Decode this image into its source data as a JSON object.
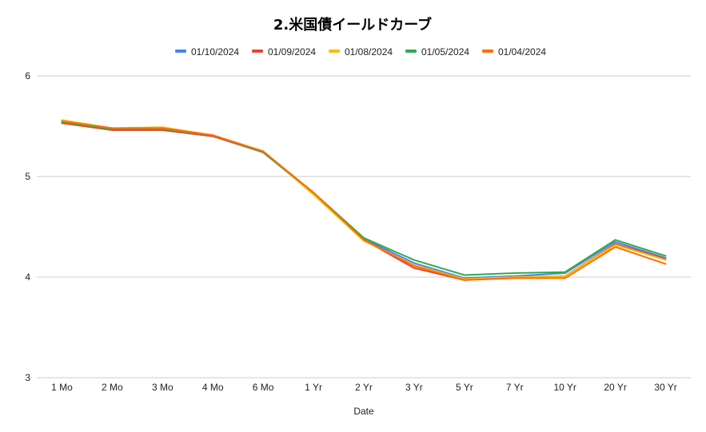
{
  "chart_data": {
    "type": "line",
    "title": "2.米国債イールドカーブ",
    "xlabel": "Date",
    "ylabel": "",
    "ylim": [
      3,
      6
    ],
    "yticks": [
      "3",
      "4",
      "5",
      "6"
    ],
    "grid": true,
    "legend_position": "top",
    "categories": [
      "1 Mo",
      "2 Mo",
      "3 Mo",
      "4 Mo",
      "6 Mo",
      "1 Yr",
      "2 Yr",
      "3 Yr",
      "5 Yr",
      "7 Yr",
      "10 Yr",
      "20 Yr",
      "30 Yr"
    ],
    "series": [
      {
        "name": "01/10/2024",
        "color": "#4285f4",
        "values": [
          5.54,
          5.47,
          5.46,
          5.4,
          5.24,
          4.83,
          4.38,
          4.14,
          3.99,
          4.01,
          4.04,
          4.35,
          4.19
        ]
      },
      {
        "name": "01/09/2024",
        "color": "#ea4335",
        "values": [
          5.53,
          5.46,
          5.46,
          5.4,
          5.24,
          4.84,
          4.37,
          4.09,
          3.97,
          4.0,
          4.01,
          4.33,
          4.18
        ]
      },
      {
        "name": "01/08/2024",
        "color": "#fbbc04",
        "values": [
          5.56,
          5.48,
          5.49,
          5.41,
          5.25,
          4.82,
          4.36,
          4.12,
          3.98,
          4.0,
          4.01,
          4.32,
          4.17
        ]
      },
      {
        "name": "01/05/2024",
        "color": "#34a853",
        "values": [
          5.54,
          5.47,
          5.47,
          5.41,
          5.24,
          4.84,
          4.39,
          4.17,
          4.02,
          4.04,
          4.05,
          4.37,
          4.21
        ]
      },
      {
        "name": "01/04/2024",
        "color": "#ff6d01",
        "values": [
          5.55,
          5.48,
          5.48,
          5.41,
          5.25,
          4.84,
          4.37,
          4.11,
          3.97,
          3.99,
          3.99,
          4.3,
          4.13
        ]
      }
    ]
  }
}
